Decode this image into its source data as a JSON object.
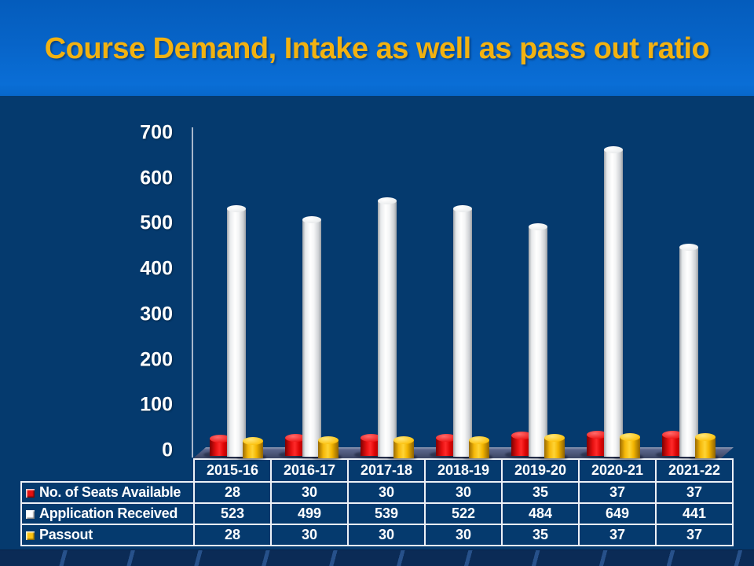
{
  "header": {
    "title": "Course Demand, Intake as well as pass out ratio"
  },
  "colors": {
    "banner_blue": "#0764c8",
    "background_navy": "#053a6e",
    "title_gold": "#f2b211",
    "table_border": "#edf1f7",
    "floor_slate": "#4a5476",
    "series_red": "#e51010",
    "series_white": "#ffffff",
    "series_yellow": "#fcc312"
  },
  "chart_data": {
    "type": "bar",
    "style": "3d-cylinder",
    "title": "Course Demand, Intake as well as pass out ratio",
    "categories": [
      "2015-16",
      "2016-17",
      "2017-18",
      "2018-19",
      "2019-20",
      "2020-21",
      "2021-22"
    ],
    "series": [
      {
        "name": "No. of Seats Available",
        "color_key": "red",
        "color": "#e51010",
        "values": [
          28,
          30,
          30,
          30,
          35,
          37,
          37
        ]
      },
      {
        "name": "Application Received",
        "color_key": "white",
        "color": "#ffffff",
        "values": [
          523,
          499,
          539,
          522,
          484,
          649,
          441
        ]
      },
      {
        "name": "Passout",
        "color_key": "yellow",
        "color": "#fcc312",
        "values": [
          28,
          30,
          30,
          30,
          35,
          37,
          37
        ]
      }
    ],
    "ylim": [
      0,
      700
    ],
    "y_ticks": [
      700,
      600,
      500,
      400,
      300,
      200,
      100,
      0
    ],
    "grid": false,
    "legend_position": "table-left-column"
  },
  "table": {
    "header_row": [
      "2015-16",
      "2016-17",
      "2017-18",
      "2018-19",
      "2019-20",
      "2020-21",
      "2021-22"
    ],
    "rows": [
      {
        "label": "No. of Seats Available",
        "values": [
          "28",
          "30",
          "30",
          "30",
          "35",
          "37",
          "37"
        ]
      },
      {
        "label": "Application Received",
        "values": [
          "523",
          "499",
          "539",
          "522",
          "484",
          "649",
          "441"
        ]
      },
      {
        "label": "Passout",
        "values": [
          "28",
          "30",
          "30",
          "30",
          "35",
          "37",
          "37"
        ]
      }
    ]
  }
}
